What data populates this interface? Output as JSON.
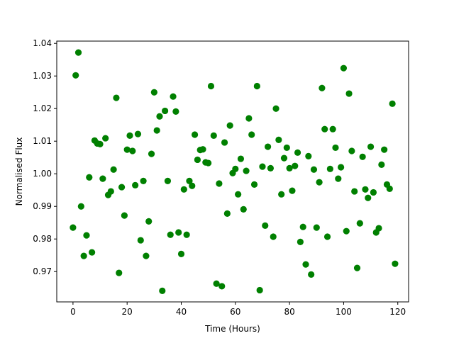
{
  "chart_data": {
    "type": "scatter",
    "title": "",
    "xlabel": "Time (Hours)",
    "ylabel": "Normalised Flux",
    "xlim": [
      -6,
      124
    ],
    "ylim": [
      0.9607,
      1.0407
    ],
    "xticks": [
      0,
      20,
      40,
      60,
      80,
      100,
      120
    ],
    "yticks": [
      0.97,
      0.98,
      0.99,
      1.0,
      1.01,
      1.02,
      1.03,
      1.04
    ],
    "ytick_labels": [
      "0.97",
      "0.98",
      "0.99",
      "1.00",
      "1.01",
      "1.02",
      "1.03",
      "1.04"
    ],
    "grid": false,
    "marker_color": "#008000",
    "x": [
      0,
      1,
      2,
      3,
      4,
      5,
      6,
      7,
      8,
      9,
      10,
      11,
      12,
      13,
      14,
      15,
      16,
      17,
      18,
      19,
      20,
      21,
      22,
      23,
      24,
      25,
      26,
      27,
      28,
      29,
      30,
      31,
      32,
      33,
      34,
      35,
      36,
      37,
      38,
      39,
      40,
      41,
      42,
      43,
      44,
      45,
      46,
      47,
      48,
      49,
      50,
      51,
      52,
      53,
      54,
      55,
      56,
      57,
      58,
      59,
      60,
      61,
      62,
      63,
      64,
      65,
      66,
      67,
      68,
      69,
      70,
      71,
      72,
      73,
      74,
      75,
      76,
      77,
      78,
      79,
      80,
      81,
      82,
      83,
      84,
      85,
      86,
      87,
      88,
      89,
      90,
      91,
      92,
      93,
      94,
      95,
      96,
      97,
      98,
      99,
      100,
      101,
      102,
      103,
      104,
      105,
      106,
      107,
      108,
      109,
      110,
      111,
      112,
      113,
      114,
      115,
      116,
      117,
      118,
      119
    ],
    "y": [
      0.9835,
      1.0302,
      1.0372,
      0.99,
      0.9748,
      0.9811,
      0.9989,
      0.9759,
      1.0102,
      1.0093,
      1.0091,
      0.9985,
      1.0109,
      0.9935,
      0.9946,
      1.0013,
      1.0233,
      0.9696,
      0.9959,
      0.9872,
      1.0074,
      1.0117,
      1.007,
      0.9965,
      1.0122,
      0.9796,
      0.9978,
      0.9748,
      0.9854,
      1.0061,
      1.025,
      1.0133,
      1.0176,
      0.9641,
      1.0193,
      0.9978,
      0.9813,
      1.0237,
      1.0191,
      0.982,
      0.9754,
      0.9952,
      0.9813,
      0.9978,
      0.9963,
      1.012,
      1.0043,
      1.0073,
      1.0075,
      1.0035,
      1.0033,
      1.0269,
      1.0117,
      0.9663,
      0.997,
      0.9655,
      1.0096,
      0.9878,
      1.0148,
      1.0002,
      1.0015,
      0.9937,
      1.0046,
      0.9891,
      1.0009,
      1.017,
      1.012,
      0.9967,
      1.0269,
      0.9643,
      1.0022,
      0.9841,
      1.0083,
      1.0017,
      0.9807,
      1.02,
      1.0104,
      0.9937,
      1.0048,
      1.008,
      1.0017,
      0.9948,
      1.0024,
      1.0065,
      0.9791,
      0.9837,
      0.9722,
      1.0054,
      0.9691,
      1.0013,
      0.9835,
      0.9974,
      1.0263,
      1.0137,
      0.9807,
      1.0015,
      1.0137,
      1.008,
      0.9985,
      1.002,
      1.0324,
      0.9824,
      1.0246,
      1.007,
      0.9946,
      0.9711,
      0.9848,
      1.0052,
      0.9952,
      0.9926,
      1.0083,
      0.9943,
      0.982,
      0.9833,
      1.0028,
      1.0074,
      0.9967,
      0.9954,
      1.0215,
      0.9724
    ]
  }
}
